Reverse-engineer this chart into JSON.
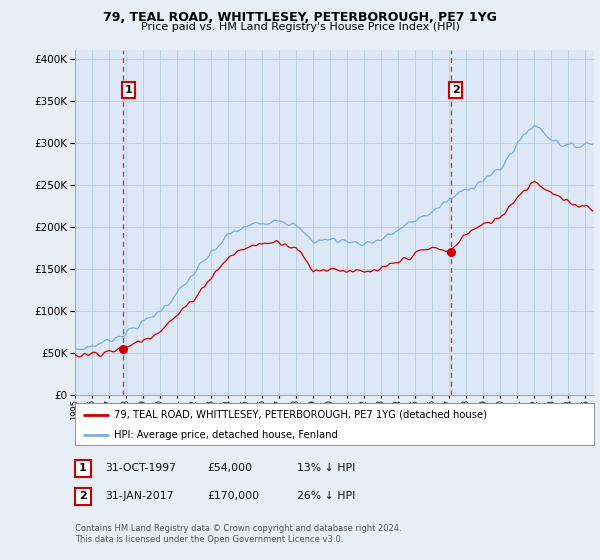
{
  "title1": "79, TEAL ROAD, WHITTLESEY, PETERBOROUGH, PE7 1YG",
  "title2": "Price paid vs. HM Land Registry's House Price Index (HPI)",
  "ylabel_values": [
    0,
    50000,
    100000,
    150000,
    200000,
    250000,
    300000,
    350000,
    400000
  ],
  "ylim": [
    0,
    410000
  ],
  "xlim_start": 1995.0,
  "xlim_end": 2025.5,
  "sale1_x": 1997.83,
  "sale1_y": 54000,
  "sale1_label": "1",
  "sale2_x": 2017.08,
  "sale2_y": 170000,
  "sale2_label": "2",
  "legend_line1": "79, TEAL ROAD, WHITTLESEY, PETERBOROUGH, PE7 1YG (detached house)",
  "legend_line2": "HPI: Average price, detached house, Fenland",
  "table_row1": [
    "1",
    "31-OCT-1997",
    "£54,000",
    "13% ↓ HPI"
  ],
  "table_row2": [
    "2",
    "31-JAN-2017",
    "£170,000",
    "26% ↓ HPI"
  ],
  "footnote1": "Contains HM Land Registry data © Crown copyright and database right 2024.",
  "footnote2": "This data is licensed under the Open Government Licence v3.0.",
  "red_color": "#cc0000",
  "blue_color": "#7aade0",
  "bg_color": "#e8eef5",
  "plot_bg": "#dce8f5",
  "grid_color": "#b8cfe0"
}
